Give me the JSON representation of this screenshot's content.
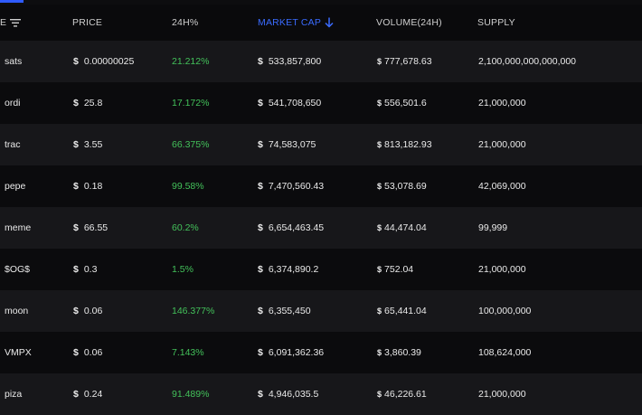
{
  "header": {
    "name_label": "E",
    "price_label": "PRICE",
    "change_label": "24H%",
    "mcap_label": "MARKET CAP",
    "volume_label": "VOLUME(24H)",
    "supply_label": "SUPPLY"
  },
  "colors": {
    "accent": "#3a6bff",
    "positive": "#43c15a",
    "row_odd": "#17171a",
    "row_even": "#0b0b0d"
  },
  "icons": {
    "filter": "filter-lines-icon",
    "sort": "arrow-down-icon"
  },
  "rows": [
    {
      "name": "sats",
      "currency": "$",
      "price": "0.00000025",
      "change": "21.212%",
      "mcap_currency": "$",
      "mcap": "533,857,800",
      "vol_currency": "$",
      "volume": "777,678.63",
      "supply": "2,100,000,000,000,000"
    },
    {
      "name": "ordi",
      "currency": "$",
      "price": "25.8",
      "change": "17.172%",
      "mcap_currency": "$",
      "mcap": "541,708,650",
      "vol_currency": "$",
      "volume": "556,501.6",
      "supply": "21,000,000"
    },
    {
      "name": "trac",
      "currency": "$",
      "price": "3.55",
      "change": "66.375%",
      "mcap_currency": "$",
      "mcap": "74,583,075",
      "vol_currency": "$",
      "volume": "813,182.93",
      "supply": "21,000,000"
    },
    {
      "name": "pepe",
      "currency": "$",
      "price": "0.18",
      "change": "99.58%",
      "mcap_currency": "$",
      "mcap": "7,470,560.43",
      "vol_currency": "$",
      "volume": "53,078.69",
      "supply": "42,069,000"
    },
    {
      "name": "meme",
      "currency": "$",
      "price": "66.55",
      "change": "60.2%",
      "mcap_currency": "$",
      "mcap": "6,654,463.45",
      "vol_currency": "$",
      "volume": "44,474.04",
      "supply": "99,999"
    },
    {
      "name": "$OG$",
      "currency": "$",
      "price": "0.3",
      "change": "1.5%",
      "mcap_currency": "$",
      "mcap": "6,374,890.2",
      "vol_currency": "$",
      "volume": "752.04",
      "supply": "21,000,000"
    },
    {
      "name": "moon",
      "currency": "$",
      "price": "0.06",
      "change": "146.377%",
      "mcap_currency": "$",
      "mcap": "6,355,450",
      "vol_currency": "$",
      "volume": "65,441.04",
      "supply": "100,000,000"
    },
    {
      "name": "VMPX",
      "currency": "$",
      "price": "0.06",
      "change": "7.143%",
      "mcap_currency": "$",
      "mcap": "6,091,362.36",
      "vol_currency": "$",
      "volume": "3,860.39",
      "supply": "108,624,000"
    },
    {
      "name": "piza",
      "currency": "$",
      "price": "0.24",
      "change": "91.489%",
      "mcap_currency": "$",
      "mcap": "4,946,035.5",
      "vol_currency": "$",
      "volume": "46,226.61",
      "supply": "21,000,000"
    }
  ]
}
